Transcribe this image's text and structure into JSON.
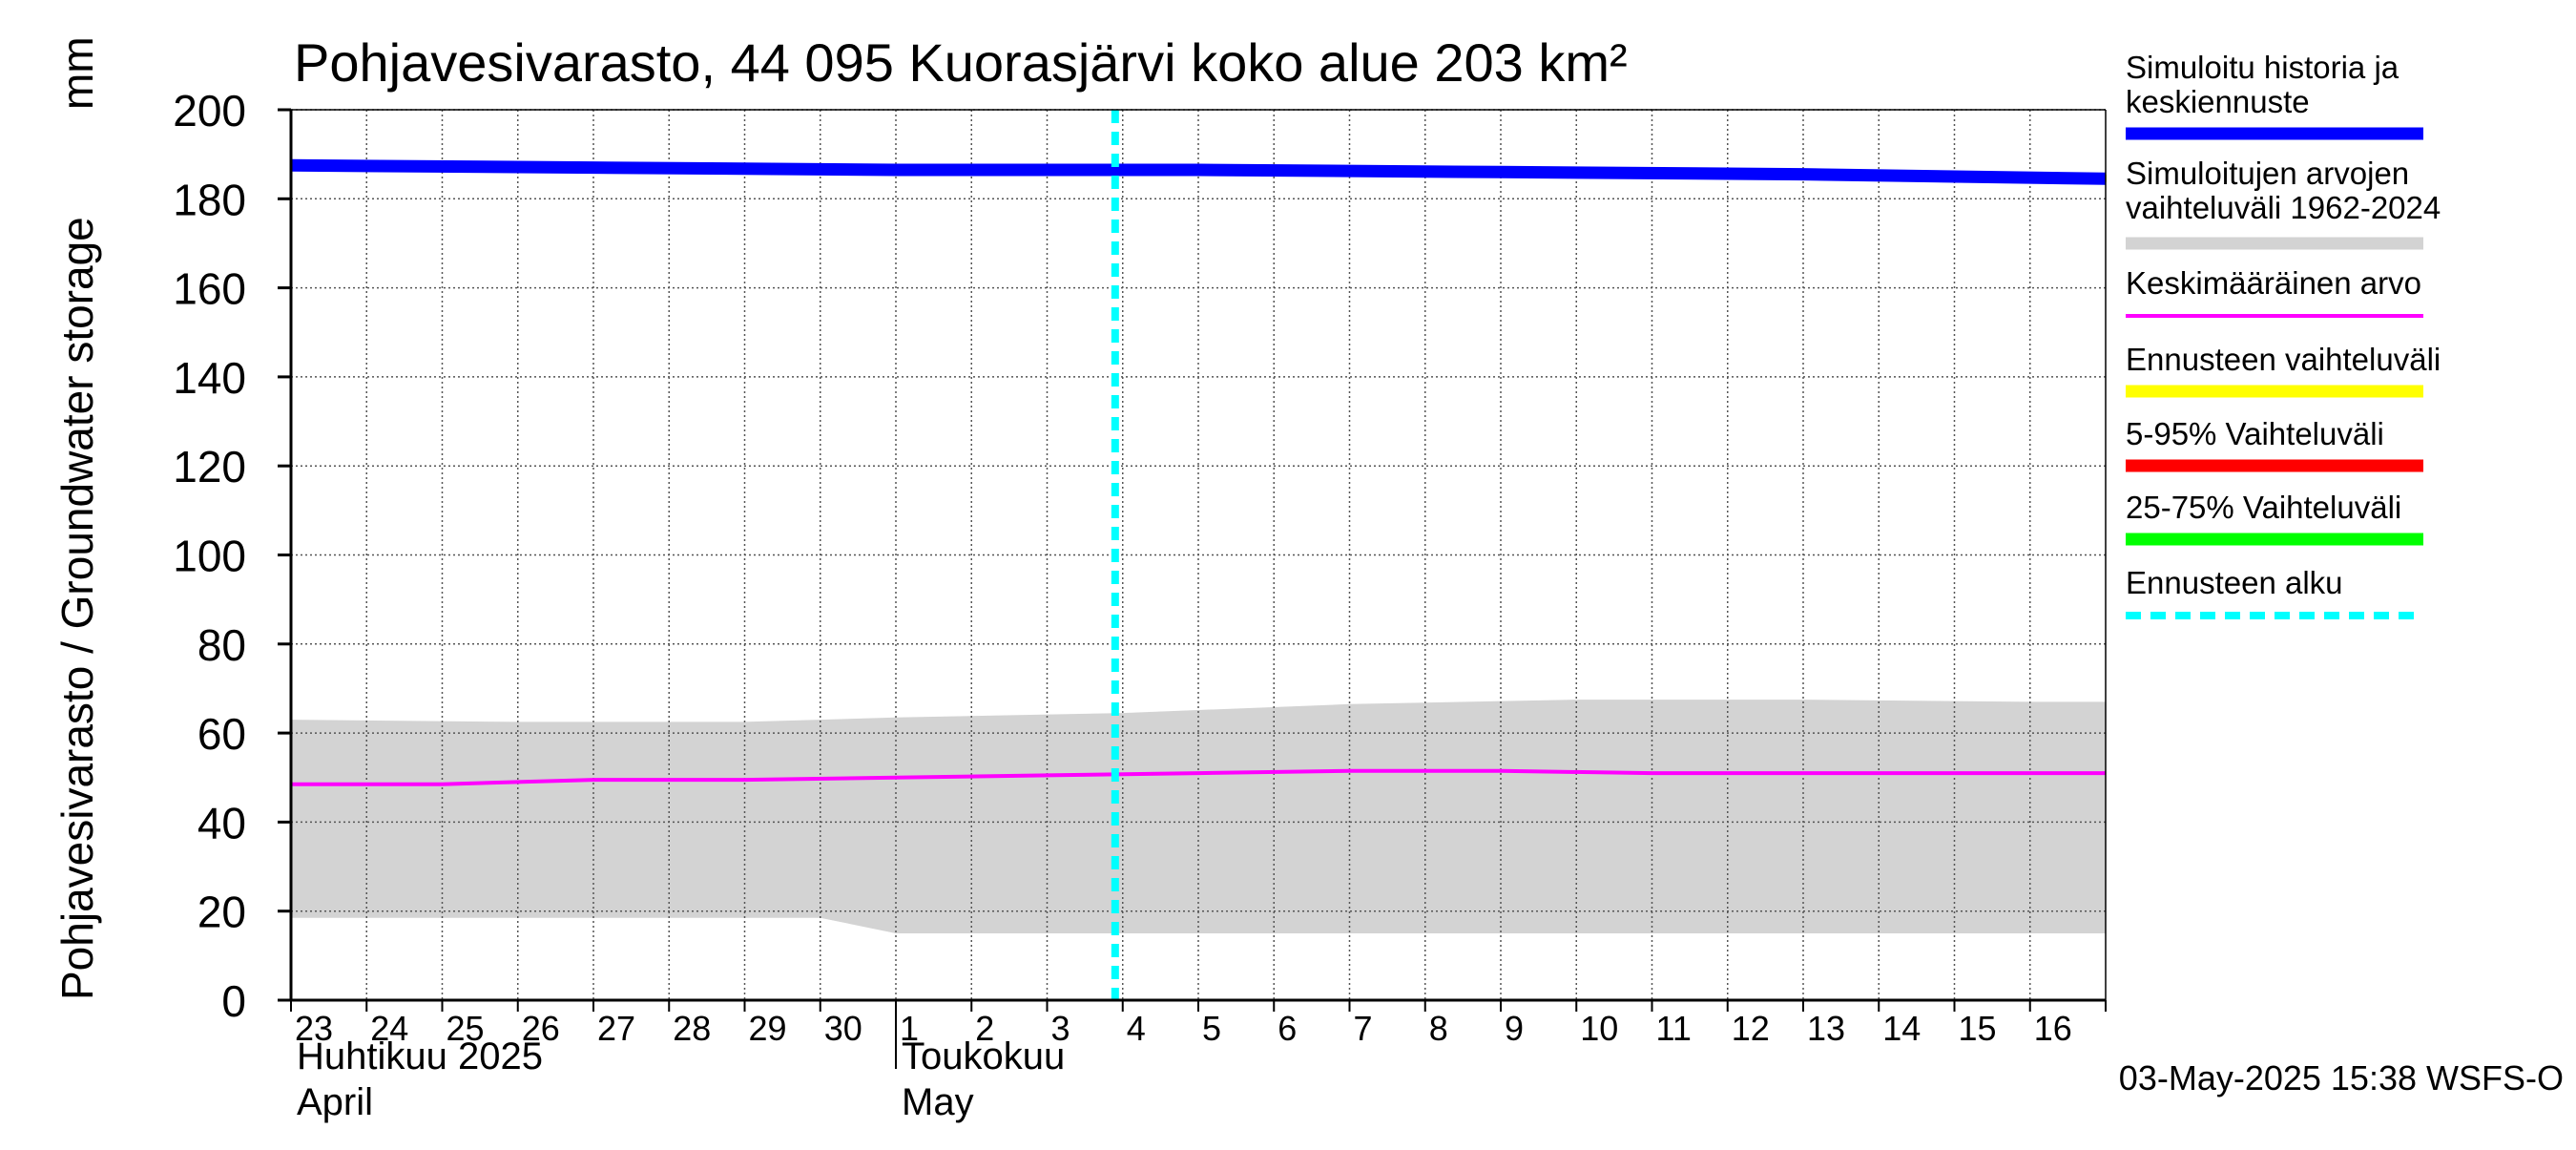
{
  "chart_data": {
    "type": "area",
    "title": "Pohjavesivarasto, 44 095 Kuorasjärvi koko alue 203 km²",
    "ylabel": "Pohjavesivarasto / Groundwater storage",
    "yunit": "mm",
    "ylim": [
      0,
      200
    ],
    "yticks": [
      0,
      20,
      40,
      60,
      80,
      100,
      120,
      140,
      160,
      180,
      200
    ],
    "grid": true,
    "x_start": "2025-04-23",
    "x_end": "2025-05-17",
    "day_ticks": [
      "23",
      "24",
      "25",
      "26",
      "27",
      "28",
      "29",
      "30",
      "1",
      "2",
      "3",
      "4",
      "5",
      "6",
      "7",
      "8",
      "9",
      "10",
      "11",
      "12",
      "13",
      "14",
      "15",
      "16"
    ],
    "month_labels": [
      {
        "fi": "Huhtikuu  2025",
        "en": "April",
        "start_day_index": 0
      },
      {
        "fi": "Toukokuu",
        "en": "May",
        "start_day_index": 8
      }
    ],
    "forecast_start_day_index": 10.9,
    "series": [
      {
        "name": "Simuloitu historia ja keskiennuste",
        "color": "#0000ff",
        "x": [
          0,
          4,
          8,
          12,
          16,
          20,
          24
        ],
        "values": [
          187.5,
          187,
          186.5,
          186.5,
          186,
          185.5,
          184.5
        ]
      },
      {
        "name": "Simuloitujen arvojen vaihteluväli 1962-2024",
        "color": "#d3d3d3",
        "x": [
          0,
          3,
          6,
          7,
          8,
          11,
          14,
          17,
          20,
          23,
          24
        ],
        "upper": [
          63,
          62.5,
          62.5,
          63,
          63.5,
          64.5,
          66.5,
          67.5,
          67.5,
          67,
          67
        ],
        "lower": [
          18.5,
          18.5,
          18.5,
          18.5,
          15,
          15,
          15,
          15,
          15,
          15,
          15
        ]
      },
      {
        "name": "Keskimääräinen arvo",
        "color": "#ff00ff",
        "x": [
          0,
          2,
          4,
          6,
          8,
          10,
          12,
          14,
          16,
          18,
          20,
          22,
          24
        ],
        "values": [
          48.5,
          48.5,
          49.5,
          49.5,
          50,
          50.5,
          51,
          51.5,
          51.5,
          51,
          51,
          51,
          51
        ]
      },
      {
        "name": "Ennusteen vaihteluväli",
        "color": "#ffff00",
        "x": [
          10.9,
          24
        ],
        "upper": [
          186.8,
          185.2
        ],
        "lower": [
          186.4,
          184
        ]
      }
    ],
    "legend": [
      {
        "label": "Simuloitu historia ja keskiennuste",
        "color": "#0000ff",
        "style": "solid"
      },
      {
        "label": "Simuloitujen arvojen vaihteluväli 1962-2024",
        "color": "#d3d3d3",
        "style": "solid"
      },
      {
        "label": "Keskimääräinen arvo",
        "color": "#ff00ff",
        "style": "thin"
      },
      {
        "label": "Ennusteen vaihteluväli",
        "color": "#ffff00",
        "style": "solid"
      },
      {
        "label": "5-95% Vaihteluväli",
        "color": "#ff0000",
        "style": "solid"
      },
      {
        "label": "25-75% Vaihteluväli",
        "color": "#00ff00",
        "style": "solid"
      },
      {
        "label": "Ennusteen alku",
        "color": "#00ffff",
        "style": "dashed"
      }
    ],
    "footer": "03-May-2025 15:38 WSFS-O"
  }
}
